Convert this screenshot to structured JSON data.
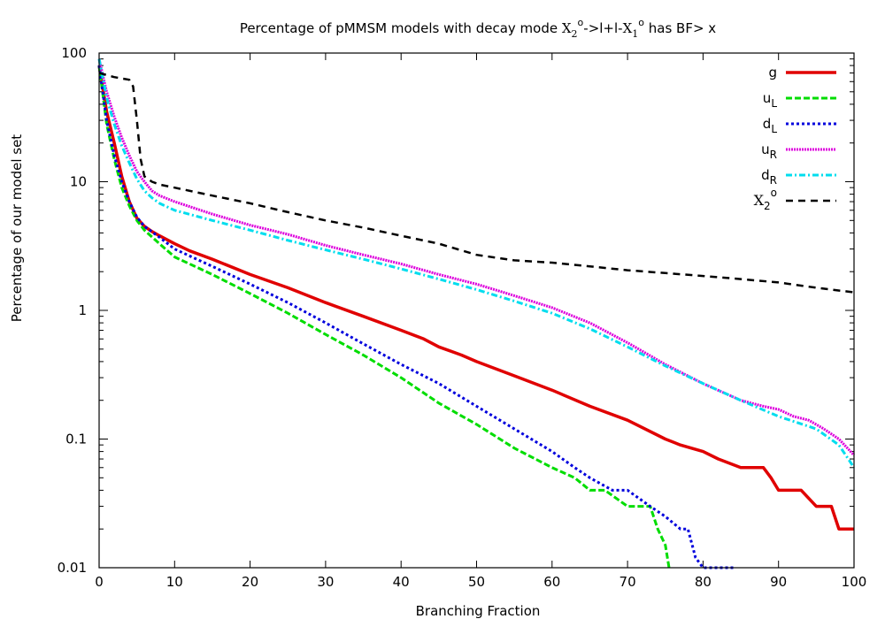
{
  "chart_data": {
    "type": "line",
    "title": {
      "pre": "Percentage of pMMSM models with decay mode ",
      "x": "X",
      "sub2": "2",
      "sup1": "o",
      "mid": "->l+l-",
      "x2": "X",
      "sub1": "1",
      "sup2": "o",
      "post": " has BF> x"
    },
    "xlabel": "Branching Fraction",
    "ylabel": "Percentage of our model set",
    "xlim": [
      0,
      100
    ],
    "ylim": [
      0.01,
      100
    ],
    "yscale": "log",
    "xticks": [
      0,
      10,
      20,
      30,
      40,
      50,
      60,
      70,
      80,
      90,
      100
    ],
    "xtick_labels": [
      "0",
      "10",
      "20",
      "30",
      "40",
      "50",
      "60",
      "70",
      "80",
      "90",
      "100"
    ],
    "yticks": [
      0.01,
      0.1,
      1,
      10,
      100
    ],
    "ytick_labels": [
      "0.01",
      "0.1",
      "1",
      "10",
      "100"
    ],
    "legend_position": "top-right",
    "series": [
      {
        "name": "g",
        "legend_sub": "",
        "color": "#e00000",
        "dash": "",
        "width": 3.5,
        "x": [
          0,
          1,
          2,
          3,
          4,
          5,
          6,
          7,
          8,
          10,
          12,
          15,
          20,
          25,
          30,
          35,
          40,
          43,
          45,
          48,
          50,
          55,
          60,
          65,
          70,
          75,
          77,
          80,
          82,
          85,
          88,
          89,
          90,
          93,
          95,
          97,
          98,
          100
        ],
        "y": [
          80,
          35,
          20,
          11,
          7,
          5.2,
          4.5,
          4.1,
          3.8,
          3.3,
          2.9,
          2.5,
          1.9,
          1.5,
          1.15,
          0.9,
          0.7,
          0.6,
          0.52,
          0.45,
          0.4,
          0.31,
          0.24,
          0.18,
          0.14,
          0.1,
          0.09,
          0.08,
          0.07,
          0.06,
          0.06,
          0.05,
          0.04,
          0.04,
          0.03,
          0.03,
          0.02,
          0.02
        ]
      },
      {
        "name": "u",
        "legend_sub": "L",
        "color": "#00dd00",
        "dash": "7,3",
        "width": 3,
        "x": [
          0,
          1,
          2,
          3,
          4,
          5,
          6,
          8,
          10,
          15,
          20,
          25,
          30,
          35,
          40,
          45,
          50,
          55,
          60,
          63,
          65,
          67,
          70,
          73,
          74,
          75,
          75.5
        ],
        "y": [
          80,
          28,
          15,
          9,
          6.5,
          5,
          4.2,
          3.3,
          2.6,
          1.9,
          1.35,
          0.95,
          0.65,
          0.45,
          0.3,
          0.19,
          0.13,
          0.085,
          0.06,
          0.05,
          0.04,
          0.04,
          0.03,
          0.03,
          0.02,
          0.015,
          0.01
        ]
      },
      {
        "name": "d",
        "legend_sub": "L",
        "color": "#0000dd",
        "dash": "3,3",
        "width": 3,
        "x": [
          0,
          1,
          2,
          3,
          4,
          5,
          6,
          8,
          10,
          15,
          20,
          25,
          30,
          35,
          40,
          45,
          50,
          55,
          60,
          63,
          65,
          68,
          70,
          73,
          75,
          77,
          78,
          79,
          80,
          82,
          84
        ],
        "y": [
          80,
          30,
          16,
          10,
          7,
          5.3,
          4.5,
          3.7,
          3,
          2.2,
          1.6,
          1.15,
          0.8,
          0.55,
          0.38,
          0.27,
          0.18,
          0.12,
          0.08,
          0.06,
          0.05,
          0.04,
          0.04,
          0.03,
          0.025,
          0.02,
          0.02,
          0.012,
          0.01,
          0.01,
          0.01
        ]
      },
      {
        "name": "u",
        "legend_sub": "R",
        "color": "#dd00dd",
        "dash": "2,1",
        "width": 3,
        "x": [
          0,
          1,
          2,
          3,
          4,
          5,
          6,
          7,
          8,
          10,
          15,
          20,
          25,
          30,
          35,
          40,
          45,
          50,
          55,
          60,
          65,
          70,
          75,
          80,
          85,
          88,
          90,
          92,
          94,
          96,
          98,
          100
        ],
        "y": [
          90,
          50,
          32,
          22,
          16,
          12,
          10,
          8.5,
          7.8,
          7,
          5.6,
          4.6,
          3.9,
          3.2,
          2.7,
          2.3,
          1.9,
          1.6,
          1.3,
          1.05,
          0.8,
          0.56,
          0.38,
          0.27,
          0.2,
          0.18,
          0.17,
          0.15,
          0.14,
          0.12,
          0.1,
          0.075
        ]
      },
      {
        "name": "d",
        "legend_sub": "R",
        "color": "#00ddee",
        "dash": "7,3,2,3",
        "width": 3,
        "x": [
          0,
          1,
          2,
          3,
          4,
          5,
          6,
          7,
          8,
          10,
          15,
          20,
          25,
          30,
          35,
          40,
          45,
          50,
          55,
          60,
          65,
          70,
          75,
          80,
          85,
          90,
          95,
          98,
          100
        ],
        "y": [
          90,
          45,
          28,
          19,
          14,
          10.5,
          8.5,
          7.5,
          6.8,
          6,
          5,
          4.2,
          3.5,
          2.95,
          2.5,
          2.1,
          1.75,
          1.45,
          1.18,
          0.95,
          0.72,
          0.52,
          0.37,
          0.27,
          0.2,
          0.15,
          0.12,
          0.09,
          0.06
        ]
      },
      {
        "name": "X",
        "legend_sub": "2",
        "legend_sup": "o",
        "color": "#000000",
        "dash": "8,6",
        "width": 2.5,
        "x": [
          0,
          2,
          4,
          4.5,
          5,
          5.5,
          6,
          7,
          8,
          10,
          15,
          20,
          25,
          30,
          35,
          40,
          45,
          50,
          55,
          60,
          65,
          70,
          75,
          80,
          85,
          90,
          95,
          100
        ],
        "y": [
          70,
          65,
          62,
          55,
          30,
          15,
          11,
          10,
          9.5,
          9,
          7.8,
          6.8,
          5.8,
          5,
          4.4,
          3.8,
          3.3,
          2.7,
          2.45,
          2.35,
          2.2,
          2.05,
          1.95,
          1.85,
          1.75,
          1.65,
          1.5,
          1.38
        ]
      }
    ]
  }
}
